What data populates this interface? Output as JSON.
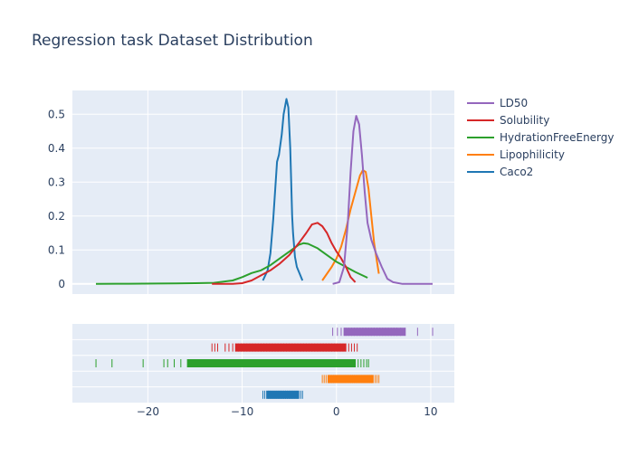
{
  "chart_data": {
    "type": "line",
    "title": "Regression task Dataset Distribution",
    "xlabel": "",
    "ylabel": "",
    "xlim": [
      -28,
      12.5
    ],
    "ylim": [
      -0.03,
      0.57
    ],
    "x_ticks": [
      -20,
      -10,
      0,
      10
    ],
    "x_tick_labels": [
      "−20",
      "−10",
      "0",
      "10"
    ],
    "y_ticks": [
      0,
      0.1,
      0.2,
      0.3,
      0.4,
      0.5
    ],
    "y_tick_labels": [
      "0",
      "0.1",
      "0.2",
      "0.3",
      "0.4",
      "0.5"
    ],
    "grid": true,
    "legend_position": "top-right",
    "series": [
      {
        "name": "LD50",
        "color": "#9467bd",
        "x": [
          -0.4,
          0.3,
          0.8,
          1.2,
          1.5,
          1.8,
          2.1,
          2.4,
          2.7,
          3.0,
          3.3,
          3.7,
          4.2,
          4.8,
          5.4,
          6.0,
          7.0,
          8.0,
          9.0,
          10.2
        ],
        "y": [
          0.0,
          0.005,
          0.05,
          0.18,
          0.33,
          0.45,
          0.495,
          0.47,
          0.38,
          0.27,
          0.18,
          0.13,
          0.09,
          0.05,
          0.015,
          0.005,
          0.0,
          0.0,
          0.0,
          0.0
        ],
        "rug": [
          -0.4,
          0.1,
          0.5,
          0.8,
          1.0,
          1.3,
          1.6,
          1.9,
          2.2,
          2.5,
          2.8,
          3.1,
          3.4,
          3.7,
          4.0,
          4.3,
          4.6,
          4.9,
          5.2,
          5.5,
          5.8,
          6.1,
          6.4,
          6.8,
          7.3,
          8.6,
          10.2
        ]
      },
      {
        "name": "Solubility",
        "color": "#d62728",
        "x": [
          -13.2,
          -12.0,
          -11.0,
          -10.0,
          -9.0,
          -8.0,
          -7.0,
          -6.0,
          -5.0,
          -4.0,
          -3.2,
          -2.6,
          -2.0,
          -1.5,
          -1.0,
          -0.5,
          0.0,
          0.5,
          1.0,
          1.5,
          2.0
        ],
        "y": [
          0.0,
          0.0,
          0.0,
          0.002,
          0.01,
          0.025,
          0.04,
          0.06,
          0.085,
          0.12,
          0.15,
          0.175,
          0.18,
          0.17,
          0.15,
          0.12,
          0.095,
          0.075,
          0.05,
          0.02,
          0.005
        ],
        "rug": [
          -13.2,
          -12.9,
          -12.6,
          -11.8,
          -11.4,
          -11.0,
          -10.7,
          -10.4,
          -10.1,
          -9.8,
          -9.5,
          -9.2,
          -8.9,
          -8.6,
          -8.3,
          -8.0,
          -7.7,
          -7.4,
          -7.1,
          -6.8,
          -6.5,
          -6.2,
          -5.9,
          -5.6,
          -5.3,
          -5.0,
          -4.7,
          -4.4,
          -4.1,
          -3.8,
          -3.5,
          -3.2,
          -2.9,
          -2.6,
          -2.3,
          -2.0,
          -1.7,
          -1.4,
          -1.1,
          -0.8,
          -0.5,
          -0.2,
          0.1,
          0.4,
          0.7,
          1.0,
          1.3,
          1.6,
          1.9,
          2.2
        ]
      },
      {
        "name": "HydrationFreeEnergy",
        "color": "#2ca02c",
        "x": [
          -25.5,
          -22.0,
          -19.0,
          -17.0,
          -15.0,
          -13.0,
          -11.0,
          -10.0,
          -9.0,
          -8.0,
          -7.0,
          -6.0,
          -5.0,
          -4.0,
          -3.5,
          -3.0,
          -2.0,
          -1.0,
          0.0,
          1.0,
          2.0,
          3.3
        ],
        "y": [
          0.0,
          0.0005,
          0.001,
          0.0015,
          0.002,
          0.003,
          0.01,
          0.02,
          0.032,
          0.04,
          0.055,
          0.075,
          0.095,
          0.115,
          0.12,
          0.118,
          0.105,
          0.085,
          0.065,
          0.05,
          0.035,
          0.018
        ],
        "rug": [
          -25.5,
          -23.8,
          -20.5,
          -18.3,
          -17.9,
          -17.2,
          -16.5,
          -15.8,
          -15.0,
          -13.6,
          -12.9,
          -12.3,
          -11.2,
          -10.6,
          -10.0,
          -9.7,
          -9.4,
          -9.1,
          -8.8,
          -8.5,
          -8.2,
          -7.9,
          -7.6,
          -7.3,
          -7.0,
          -6.7,
          -6.4,
          -6.1,
          -5.8,
          -5.5,
          -5.2,
          -4.9,
          -4.6,
          -4.3,
          -4.0,
          -3.7,
          -3.4,
          -3.1,
          -2.8,
          -2.5,
          -2.2,
          -1.9,
          -1.6,
          -1.3,
          -1.0,
          -0.7,
          -0.4,
          -0.1,
          0.2,
          0.5,
          0.8,
          1.1,
          1.4,
          1.7,
          2.0,
          2.3,
          2.6,
          2.9,
          3.2,
          3.4
        ]
      },
      {
        "name": "Lipophilicity",
        "color": "#ff7f0e",
        "x": [
          -1.5,
          -1.0,
          -0.5,
          0.0,
          0.5,
          1.0,
          1.5,
          2.0,
          2.5,
          2.8,
          3.1,
          3.4,
          3.7,
          4.0,
          4.5
        ],
        "y": [
          0.01,
          0.03,
          0.05,
          0.075,
          0.11,
          0.16,
          0.22,
          0.27,
          0.32,
          0.335,
          0.33,
          0.28,
          0.2,
          0.12,
          0.03
        ],
        "rug": [
          -1.5,
          -1.3,
          -1.1,
          -0.9,
          -0.7,
          -0.5,
          -0.3,
          -0.1,
          0.1,
          0.3,
          0.5,
          0.7,
          0.9,
          1.1,
          1.3,
          1.5,
          1.7,
          1.9,
          2.1,
          2.3,
          2.5,
          2.7,
          2.9,
          3.1,
          3.3,
          3.5,
          3.7,
          3.9,
          4.1,
          4.3,
          4.5
        ]
      },
      {
        "name": "Caco2",
        "color": "#1f77b4",
        "x": [
          -7.8,
          -7.3,
          -7.0,
          -6.7,
          -6.3,
          -6.1,
          -5.8,
          -5.6,
          -5.3,
          -5.1,
          -4.9,
          -4.7,
          -4.6,
          -4.4,
          -4.2,
          -3.9,
          -3.6
        ],
        "y": [
          0.01,
          0.04,
          0.09,
          0.19,
          0.36,
          0.38,
          0.44,
          0.5,
          0.545,
          0.52,
          0.4,
          0.2,
          0.15,
          0.08,
          0.05,
          0.03,
          0.01
        ],
        "rug": [
          -7.8,
          -7.6,
          -7.4,
          -7.2,
          -7.0,
          -6.8,
          -6.6,
          -6.4,
          -6.2,
          -6.0,
          -5.8,
          -5.6,
          -5.4,
          -5.2,
          -5.0,
          -4.8,
          -4.6,
          -4.4,
          -4.2,
          -4.0,
          -3.8,
          -3.6
        ]
      }
    ]
  }
}
